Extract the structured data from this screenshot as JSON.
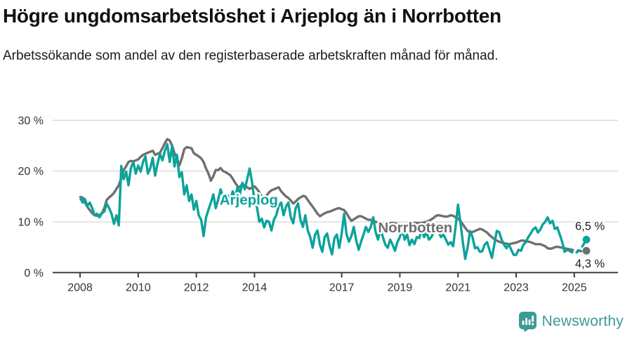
{
  "header": {
    "title": "Högre ungdomsarbetslöshet i Arjeplog än i Norrbotten",
    "subtitle": "Arbetssökande som andel av den registerbaserade arbetskraften månad för månad."
  },
  "chart_data": {
    "type": "line",
    "unit": "%",
    "start": "2008-01",
    "frequency": "monthly",
    "ylim": [
      0,
      30
    ],
    "grid": true,
    "colors": {
      "grid": "#d8d8d8",
      "axis": "#3f3f3f",
      "tick_label": "#333333",
      "annotation": "#222222"
    },
    "yticks": [
      {
        "value": 0,
        "label": "0 %"
      },
      {
        "value": 10,
        "label": "10 %"
      },
      {
        "value": 20,
        "label": "20 %"
      },
      {
        "value": 30,
        "label": "30 %"
      }
    ],
    "xticks": [
      {
        "year": 2008,
        "label": "2008"
      },
      {
        "year": 2010,
        "label": "2010"
      },
      {
        "year": 2012,
        "label": "2012"
      },
      {
        "year": 2014,
        "label": "2014"
      },
      {
        "year": 2017,
        "label": "2017"
      },
      {
        "year": 2019,
        "label": "2019"
      },
      {
        "year": 2021,
        "label": "2021"
      },
      {
        "year": 2023,
        "label": "2023"
      },
      {
        "year": 2025,
        "label": "2025"
      }
    ],
    "dashed_tail_from_index": 202,
    "series": [
      {
        "name": "Arjeplog",
        "color": "#0ba39a",
        "end_label": "6,5 %",
        "end_value": 6.5,
        "label_pos": {
          "year": 2012.8,
          "pct": 13.4
        },
        "values": [
          15.1,
          13.8,
          14.5,
          13.1,
          13.8,
          12.7,
          11.3,
          11.6,
          10.9,
          11.7,
          12.0,
          13.6,
          12.7,
          11.6,
          9.6,
          11.3,
          9.3,
          21.0,
          18.4,
          19.9,
          17.2,
          20.6,
          21.8,
          19.5,
          21.1,
          19.9,
          21.8,
          22.9,
          19.5,
          20.6,
          22.6,
          19.1,
          21.5,
          23.4,
          22.1,
          24.0,
          25.3,
          21.8,
          25.0,
          20.9,
          23.2,
          18.8,
          19.8,
          15.4,
          17.2,
          14.1,
          15.4,
          12.4,
          14.1,
          11.3,
          10.4,
          7.2,
          10.9,
          12.4,
          13.8,
          15.4,
          12.7,
          14.3,
          16.4,
          15.0,
          13.8,
          15.2,
          14.3,
          16.0,
          14.8,
          16.8,
          15.5,
          17.7,
          16.4,
          18.4,
          20.5,
          17.7,
          14.1,
          13.0,
          10.0,
          10.6,
          8.9,
          10.2,
          10.0,
          8.3,
          10.4,
          11.3,
          13.1,
          13.8,
          11.3,
          13.0,
          13.8,
          10.9,
          9.7,
          12.7,
          13.6,
          10.4,
          9.0,
          11.3,
          8.3,
          7.0,
          4.9,
          7.5,
          8.3,
          5.5,
          4.1,
          7.0,
          7.7,
          5.2,
          3.6,
          6.8,
          7.5,
          4.9,
          7.7,
          11.6,
          7.5,
          6.1,
          7.2,
          9.0,
          6.3,
          4.5,
          6.1,
          7.5,
          9.0,
          8.0,
          9.0,
          10.9,
          8.0,
          6.5,
          8.5,
          7.0,
          5.5,
          4.9,
          6.5,
          5.5,
          4.3,
          6.0,
          7.0,
          8.5,
          6.5,
          7.5,
          5.4,
          6.5,
          5.6,
          7.0,
          6.8,
          8.5,
          7.0,
          8.0,
          6.5,
          7.0,
          8.0,
          9.5,
          8.0,
          7.0,
          7.5,
          6.5,
          5.5,
          6.0,
          5.2,
          9.0,
          13.4,
          10.0,
          6.0,
          2.7,
          5.0,
          8.2,
          7.0,
          4.8,
          5.0,
          4.1,
          4.2,
          5.5,
          6.0,
          4.5,
          2.9,
          5.5,
          8.2,
          8.0,
          6.5,
          5.5,
          4.8,
          5.6,
          4.5,
          3.5,
          3.5,
          4.5,
          4.3,
          5.5,
          6.0,
          7.0,
          7.7,
          8.5,
          8.9,
          7.9,
          8.5,
          9.5,
          10.0,
          10.9,
          9.7,
          10.2,
          8.6,
          8.9,
          7.5,
          6.1,
          4.1,
          4.5,
          4.3,
          4.0,
          4.3,
          4.0,
          4.3,
          4.9,
          5.7,
          6.5
        ]
      },
      {
        "name": "Norrbotten",
        "color": "#6f6f6f",
        "end_label": "4,3 %",
        "end_value": 4.3,
        "label_pos": {
          "year": 2018.25,
          "pct": 7.9
        },
        "values": [
          14.2,
          14.8,
          13.8,
          13.0,
          12.3,
          11.7,
          11.3,
          11.2,
          11.3,
          11.7,
          12.7,
          14.3,
          14.8,
          15.2,
          15.7,
          16.5,
          17.2,
          18.7,
          20.2,
          20.9,
          21.8,
          22.0,
          21.9,
          22.1,
          22.3,
          22.8,
          23.2,
          23.4,
          23.6,
          23.8,
          24.0,
          23.2,
          23.4,
          23.6,
          24.5,
          25.5,
          26.3,
          26.0,
          25.0,
          23.5,
          22.5,
          21.1,
          22.5,
          24.3,
          24.7,
          24.6,
          24.5,
          23.5,
          23.2,
          22.9,
          22.5,
          21.8,
          20.5,
          19.5,
          18.1,
          19.0,
          20.2,
          20.2,
          20.6,
          20.0,
          19.8,
          19.5,
          19.2,
          18.5,
          17.7,
          17.0,
          16.8,
          17.5,
          17.2,
          16.8,
          16.5,
          16.8,
          17.0,
          16.5,
          15.8,
          15.0,
          14.7,
          15.2,
          15.8,
          16.2,
          16.4,
          16.6,
          16.8,
          16.0,
          15.5,
          15.0,
          14.7,
          14.2,
          13.6,
          14.0,
          14.5,
          14.8,
          15.1,
          15.0,
          14.3,
          13.6,
          13.0,
          12.3,
          11.6,
          11.1,
          11.4,
          11.7,
          11.9,
          12.0,
          12.2,
          12.4,
          12.6,
          12.7,
          12.5,
          12.3,
          11.7,
          10.9,
          10.2,
          10.5,
          10.8,
          11.1,
          11.1,
          10.9,
          10.6,
          10.4,
          10.4,
          10.2,
          10.0,
          9.9,
          9.8,
          9.7,
          9.6,
          9.6,
          9.7,
          9.8,
          9.7,
          9.6,
          9.6,
          9.5,
          9.4,
          9.5,
          9.6,
          9.7,
          9.8,
          9.8,
          9.7,
          9.8,
          9.9,
          10.0,
          10.2,
          10.5,
          10.8,
          11.2,
          11.3,
          11.2,
          11.1,
          11.0,
          11.1,
          11.3,
          11.2,
          10.9,
          10.6,
          10.2,
          9.5,
          8.8,
          8.2,
          7.9,
          8.0,
          8.2,
          8.4,
          8.6,
          8.5,
          8.2,
          7.9,
          7.4,
          7.0,
          6.6,
          6.3,
          6.1,
          5.9,
          5.8,
          5.7,
          5.6,
          5.7,
          5.8,
          5.9,
          6.1,
          6.3,
          6.3,
          6.2,
          6.1,
          6.0,
          5.8,
          5.6,
          5.6,
          5.6,
          5.4,
          5.2,
          4.8,
          4.7,
          4.8,
          5.0,
          5.1,
          5.0,
          4.9,
          4.8,
          4.7,
          4.6,
          4.5,
          4.5,
          4.4,
          4.3,
          4.2,
          4.3,
          4.3
        ]
      }
    ]
  },
  "footer": {
    "brand": "Newsworthy"
  }
}
